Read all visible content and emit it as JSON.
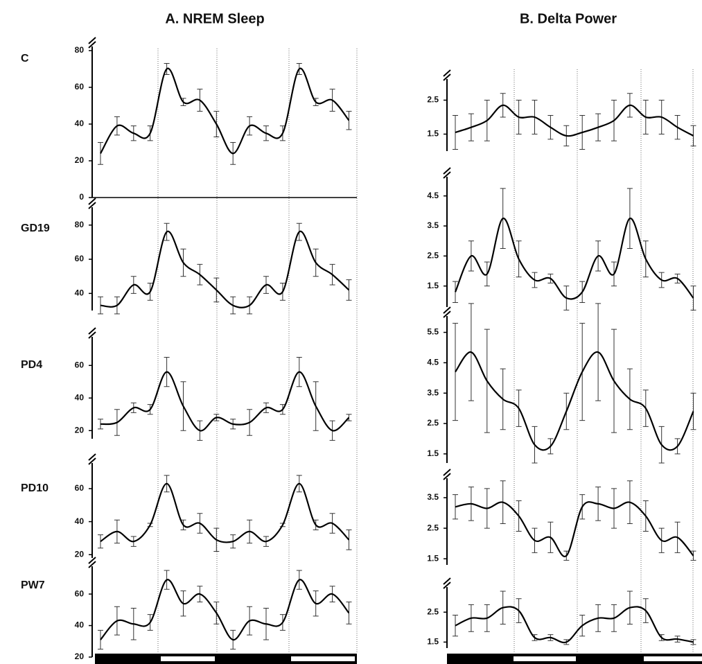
{
  "columns": [
    "A. NREM Sleep",
    "B. Delta Power"
  ],
  "rows": [
    "C",
    "GD19",
    "PD4",
    "PD10",
    "PW7"
  ],
  "chart_data": [
    {
      "type": "line",
      "color": "#000000",
      "ylim": [
        0,
        80
      ],
      "yticks": [
        0,
        20,
        40,
        60,
        80
      ],
      "values": [
        24,
        39,
        35,
        35,
        70,
        52,
        53,
        40,
        24,
        39,
        35,
        35,
        70,
        52,
        53,
        42
      ],
      "errors": [
        6,
        5,
        4,
        4,
        3,
        2,
        6,
        7,
        6,
        5,
        4,
        4,
        3,
        2,
        6,
        5
      ]
    },
    {
      "type": "line",
      "color": "#000000",
      "ylim": [
        30,
        88
      ],
      "yticks": [
        40,
        60,
        80
      ],
      "values": [
        33,
        33,
        45,
        41,
        76,
        58,
        51,
        42,
        33,
        33,
        45,
        41,
        76,
        58,
        51,
        42
      ],
      "errors": [
        5,
        5,
        5,
        5,
        5,
        8,
        6,
        7,
        5,
        5,
        5,
        5,
        5,
        8,
        6,
        6
      ]
    },
    {
      "type": "line",
      "color": "#000000",
      "ylim": [
        15,
        75
      ],
      "yticks": [
        20,
        40,
        60
      ],
      "values": [
        24,
        25,
        34,
        33,
        56,
        35,
        20,
        28,
        24,
        25,
        34,
        33,
        56,
        35,
        20,
        28
      ],
      "errors": [
        3,
        8,
        3,
        3,
        9,
        15,
        6,
        2,
        3,
        8,
        3,
        3,
        9,
        15,
        6,
        2
      ]
    },
    {
      "type": "line",
      "color": "#000000",
      "ylim": [
        18,
        73
      ],
      "yticks": [
        20,
        40,
        60
      ],
      "values": [
        28,
        34,
        28,
        38,
        63,
        38,
        39,
        29,
        28,
        34,
        28,
        38,
        63,
        38,
        39,
        29
      ],
      "errors": [
        4,
        7,
        3,
        1,
        5,
        3,
        6,
        7,
        4,
        7,
        3,
        1,
        5,
        3,
        6,
        6
      ]
    },
    {
      "type": "line",
      "color": "#000000",
      "ylim": [
        20,
        75
      ],
      "yticks": [
        20,
        40,
        60
      ],
      "values": [
        31,
        43,
        41,
        42,
        69,
        54,
        60,
        48,
        31,
        43,
        41,
        42,
        69,
        54,
        60,
        48
      ],
      "errors": [
        6,
        9,
        10,
        5,
        6,
        8,
        5,
        7,
        6,
        9,
        10,
        5,
        6,
        8,
        5,
        7
      ]
    },
    {
      "type": "line",
      "color": "#000000",
      "ylim": [
        1.0,
        3.0
      ],
      "yticks": [
        1.5,
        2.5
      ],
      "values": [
        1.55,
        1.7,
        1.9,
        2.35,
        2.0,
        2.0,
        1.7,
        1.45,
        1.55,
        1.7,
        1.9,
        2.35,
        2.0,
        2.0,
        1.7,
        1.45
      ],
      "errors": [
        0.5,
        0.4,
        0.6,
        0.35,
        0.5,
        0.5,
        0.35,
        0.3,
        0.5,
        0.4,
        0.6,
        0.35,
        0.5,
        0.5,
        0.35,
        0.3
      ]
    },
    {
      "type": "line",
      "color": "#000000",
      "ylim": [
        0.8,
        5.0
      ],
      "yticks": [
        1.5,
        2.5,
        3.5,
        4.5
      ],
      "values": [
        1.3,
        2.5,
        1.9,
        3.75,
        2.4,
        1.7,
        1.75,
        1.1,
        1.3,
        2.5,
        1.9,
        3.75,
        2.4,
        1.7,
        1.75,
        1.1
      ],
      "errors": [
        0.35,
        0.5,
        0.4,
        1.0,
        0.6,
        0.25,
        0.15,
        0.4,
        0.35,
        0.5,
        0.4,
        1.0,
        0.6,
        0.25,
        0.15,
        0.4
      ]
    },
    {
      "type": "line",
      "color": "#000000",
      "ylim": [
        1.2,
        5.9
      ],
      "yticks": [
        1.5,
        2.5,
        3.5,
        4.5,
        5.5
      ],
      "values": [
        4.2,
        4.85,
        3.9,
        3.3,
        3.0,
        1.8,
        1.75,
        2.9,
        4.2,
        4.85,
        3.9,
        3.3,
        3.0,
        1.8,
        1.75,
        2.9
      ],
      "errors": [
        1.6,
        1.6,
        1.7,
        1.0,
        0.6,
        0.6,
        0.25,
        0.6,
        1.6,
        1.6,
        1.7,
        1.0,
        0.6,
        0.6,
        0.25,
        0.6
      ]
    },
    {
      "type": "line",
      "color": "#000000",
      "ylim": [
        1.3,
        4.0
      ],
      "yticks": [
        1.5,
        2.5,
        3.5
      ],
      "values": [
        3.2,
        3.3,
        3.15,
        3.35,
        2.9,
        2.1,
        2.2,
        1.6,
        3.2,
        3.3,
        3.15,
        3.35,
        2.9,
        2.1,
        2.2,
        1.6
      ],
      "errors": [
        0.4,
        0.55,
        0.65,
        0.7,
        0.5,
        0.4,
        0.5,
        0.15,
        0.4,
        0.55,
        0.65,
        0.7,
        0.5,
        0.4,
        0.5,
        0.15
      ]
    },
    {
      "type": "line",
      "color": "#000000",
      "ylim": [
        1.3,
        3.2
      ],
      "yticks": [
        1.5,
        2.5
      ],
      "values": [
        2.05,
        2.3,
        2.3,
        2.65,
        2.55,
        1.65,
        1.65,
        1.5,
        2.05,
        2.3,
        2.3,
        2.65,
        2.55,
        1.65,
        1.6,
        1.5
      ],
      "errors": [
        0.35,
        0.45,
        0.45,
        0.55,
        0.4,
        0.1,
        0.1,
        0.08,
        0.35,
        0.45,
        0.45,
        0.55,
        0.4,
        0.1,
        0.1,
        0.08
      ]
    }
  ]
}
